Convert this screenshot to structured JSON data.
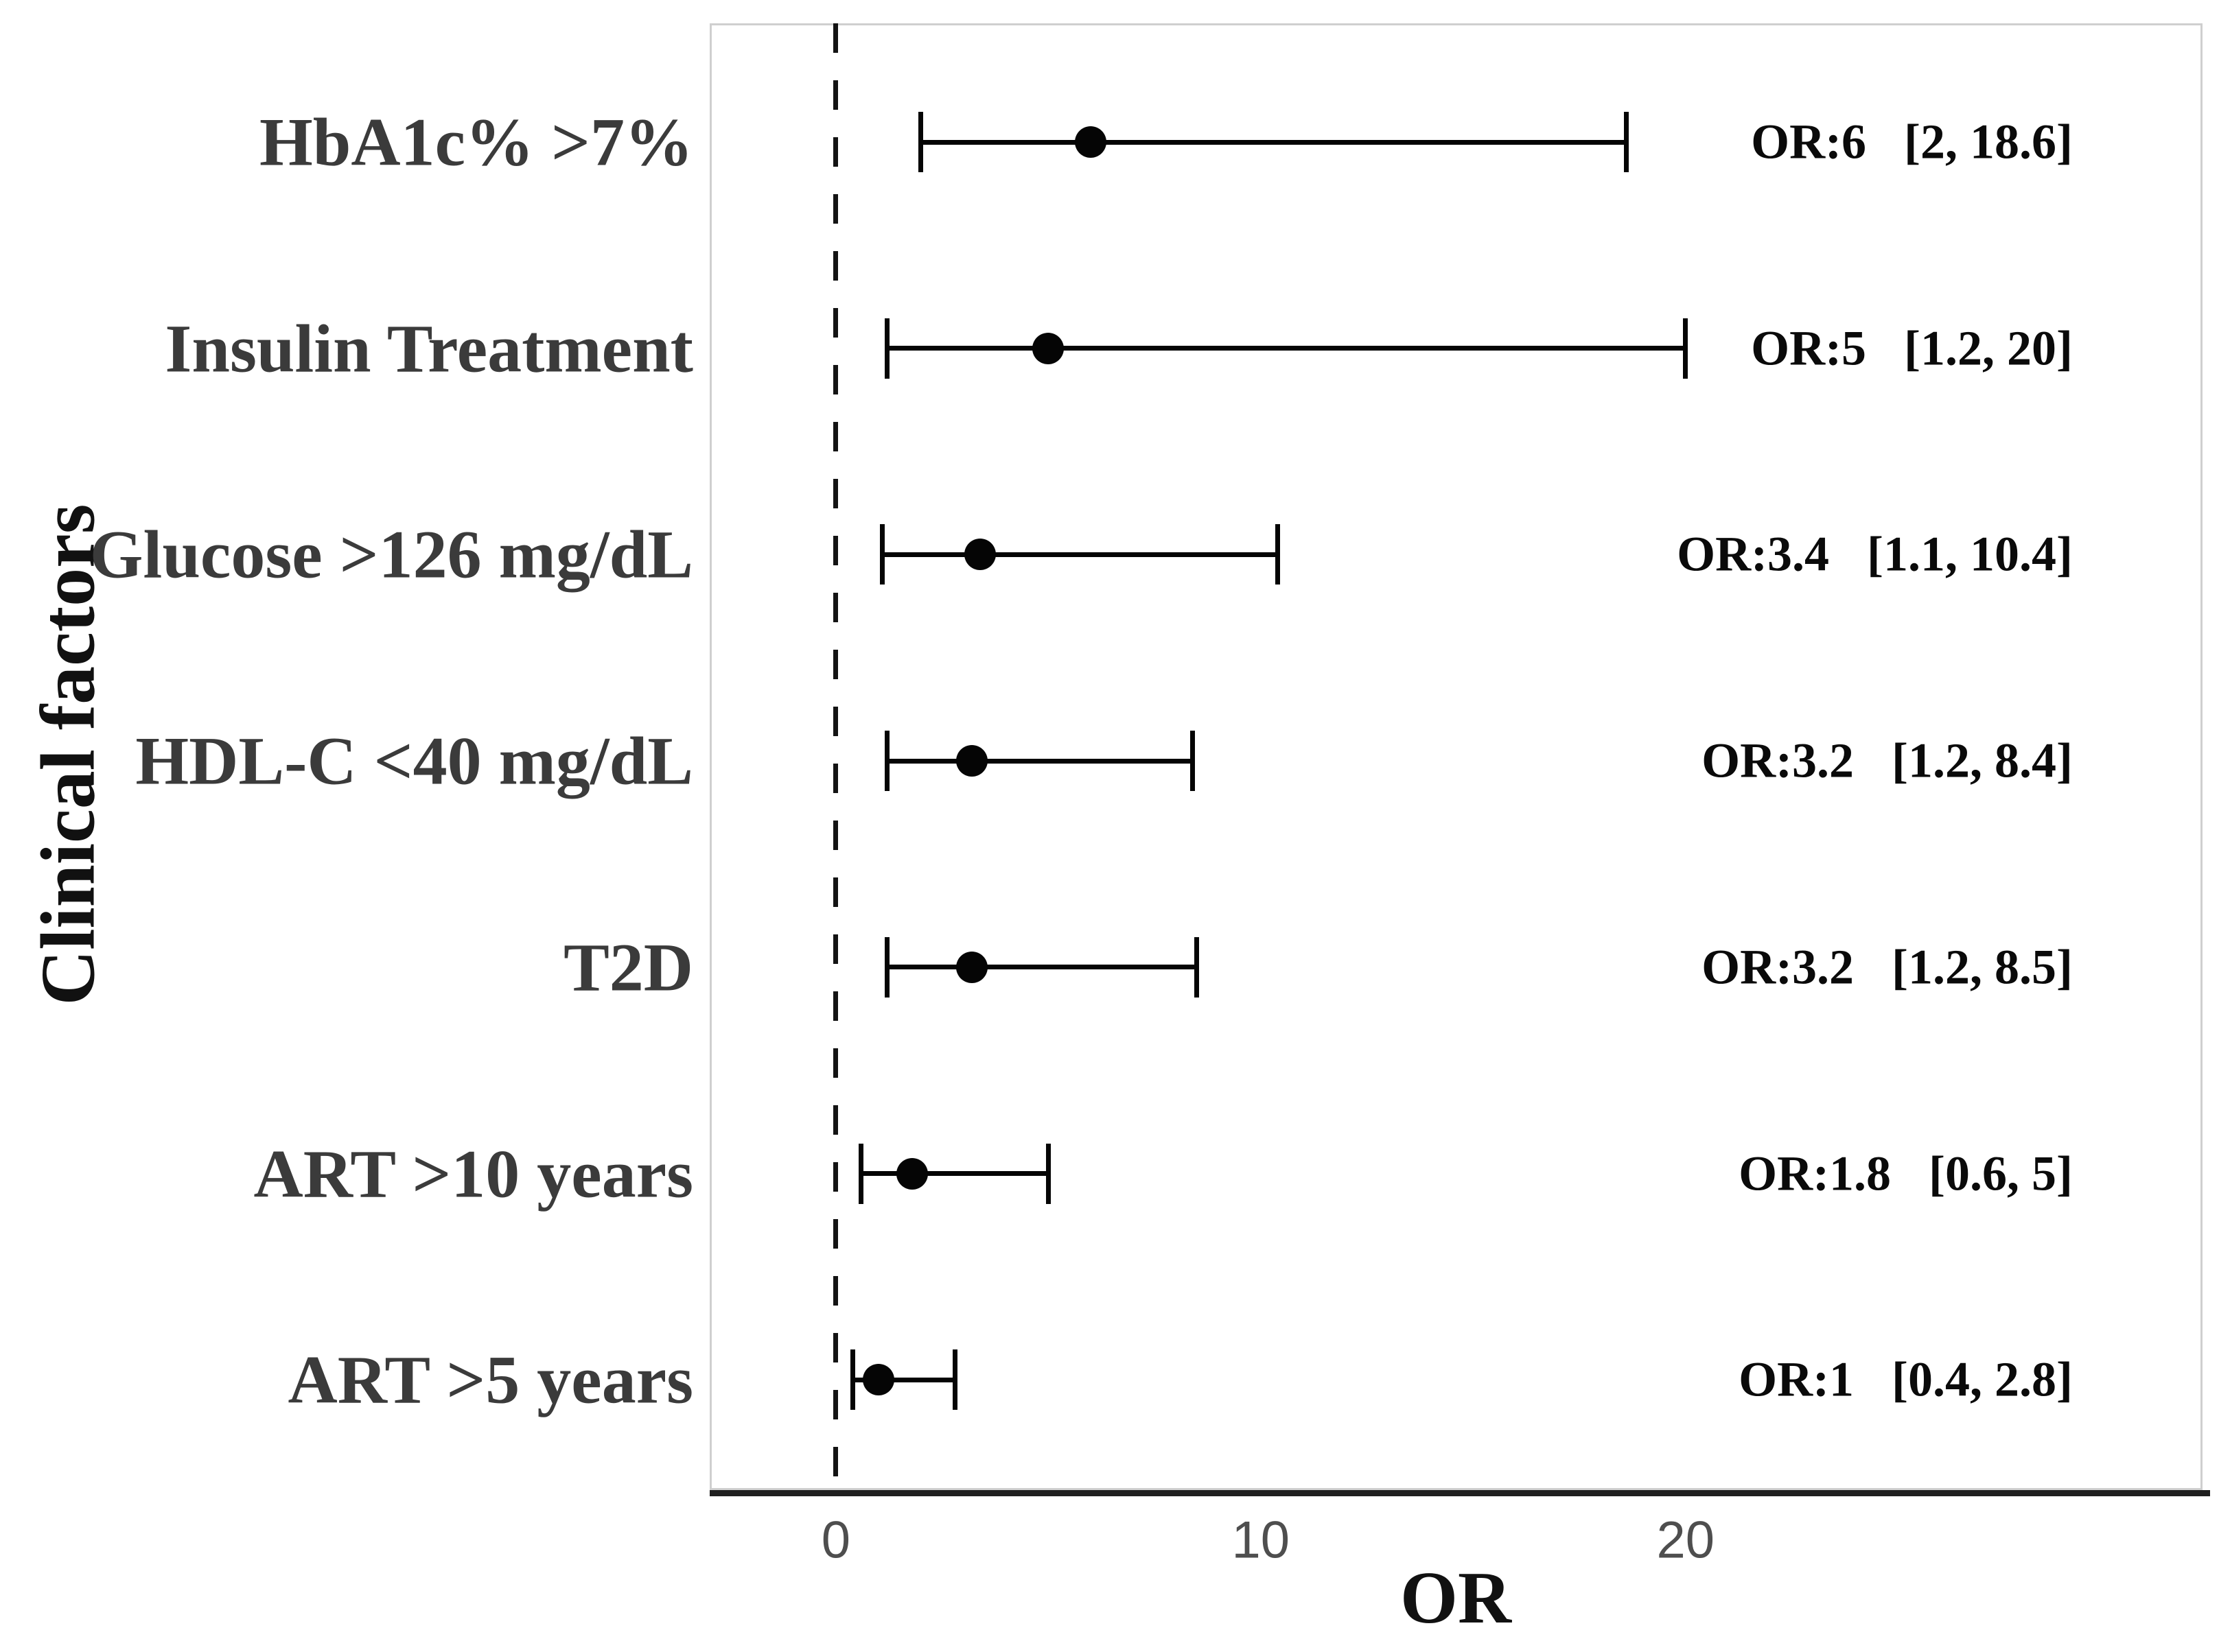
{
  "chart_data": {
    "type": "scatter",
    "subtype": "forest-plot-odds-ratios",
    "title": "",
    "xlabel": "OR",
    "ylabel": "Clinical factors",
    "x_ticks": [
      0,
      10,
      20
    ],
    "xlim": [
      -2.97,
      32.17
    ],
    "grid": false,
    "legend": null,
    "reference_line_x": 0,
    "reference_line_style": "dashed",
    "rows": [
      {
        "category": "HbA1c% >7%",
        "or": 6,
        "ci_low": 2,
        "ci_high": 18.6,
        "or_label": "OR:6",
        "ci_label": "[2, 18.6]"
      },
      {
        "category": "Insulin Treatment",
        "or": 5,
        "ci_low": 1.2,
        "ci_high": 20,
        "or_label": "OR:5",
        "ci_label": "[1.2, 20]"
      },
      {
        "category": "Glucose >126 mg/dL",
        "or": 3.4,
        "ci_low": 1.1,
        "ci_high": 10.4,
        "or_label": "OR:3.4",
        "ci_label": "[1.1, 10.4]"
      },
      {
        "category": "HDL-C <40 mg/dL",
        "or": 3.2,
        "ci_low": 1.2,
        "ci_high": 8.4,
        "or_label": "OR:3.2",
        "ci_label": "[1.2, 8.4]"
      },
      {
        "category": "T2D",
        "or": 3.2,
        "ci_low": 1.2,
        "ci_high": 8.5,
        "or_label": "OR:3.2",
        "ci_label": "[1.2, 8.5]"
      },
      {
        "category": "ART >10 years",
        "or": 1.8,
        "ci_low": 0.6,
        "ci_high": 5,
        "or_label": "OR:1.8",
        "ci_label": "[0.6, 5]"
      },
      {
        "category": "ART >5 years",
        "or": 1,
        "ci_low": 0.4,
        "ci_high": 2.8,
        "or_label": "OR:1",
        "ci_label": "[0.4, 2.8]"
      }
    ]
  },
  "colors": {
    "background": "#ffffff",
    "marker": "#050505",
    "axis_line": "#1f1f1f",
    "reference_line": "#141414",
    "panel_border": "#cfcfcf",
    "category_label": "#3b3b3b",
    "annotation": "#0a0a0a",
    "tick_label": "#4e4e4e",
    "title": "#111111"
  }
}
